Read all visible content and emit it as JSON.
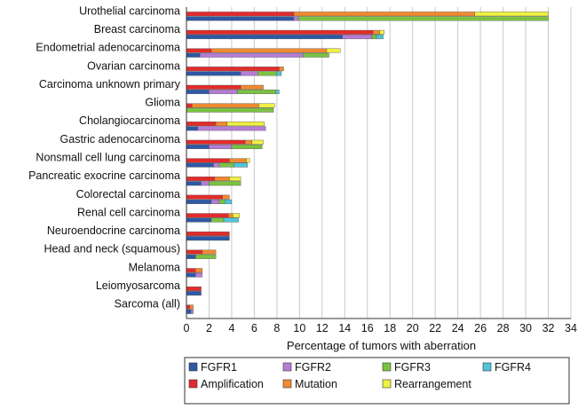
{
  "chart_data": {
    "type": "bar",
    "orientation": "horizontal",
    "stacked": true,
    "xlabel": "Percentage of tumors with aberration",
    "xlim": [
      0,
      34
    ],
    "xticks": [
      0,
      2,
      4,
      6,
      8,
      10,
      12,
      14,
      16,
      18,
      20,
      22,
      24,
      26,
      28,
      30,
      32,
      34
    ],
    "grid": "vertical",
    "legend_position": "bottom",
    "categories": [
      "Urothelial carcinoma",
      "Breast carcinoma",
      "Endometrial adenocarcinoma",
      "Ovarian carcinoma",
      "Carcinoma unknown primary",
      "Glioma",
      "Cholangiocarcinoma",
      "Gastric adenocarcinoma",
      "Nonsmall cell lung carcinoma",
      "Pancreatic exocrine carcinoma",
      "Colorectal carcinoma",
      "Renal cell carcinoma",
      "Neuroendocrine carcinoma",
      "Head and neck (squamous)",
      "Melanoma",
      "Leiomyosarcoma",
      "Sarcoma (all)"
    ],
    "aberration_bars": {
      "series": [
        {
          "name": "Amplification",
          "color": "#e32b2b",
          "values": [
            9.5,
            16.5,
            2.2,
            8.2,
            4.8,
            0.5,
            2.6,
            5.2,
            3.8,
            2.5,
            3.2,
            3.7,
            3.8,
            1.4,
            0.8,
            1.3,
            0.3
          ]
        },
        {
          "name": "Mutation",
          "color": "#f08a30",
          "values": [
            16.0,
            0.6,
            10.2,
            0.4,
            2.0,
            5.9,
            1.0,
            0.6,
            1.5,
            1.3,
            0.6,
            0.4,
            0.0,
            1.2,
            0.6,
            0.0,
            0.3
          ]
        },
        {
          "name": "Rearrangement",
          "color": "#f0f042",
          "values": [
            6.5,
            0.4,
            1.2,
            0.0,
            0.0,
            1.4,
            3.3,
            1.0,
            0.3,
            1.0,
            0.0,
            0.6,
            0.0,
            0.0,
            0.0,
            0.0,
            0.0
          ]
        }
      ]
    },
    "gene_bars": {
      "series": [
        {
          "name": "FGFR1",
          "color": "#2e58a6",
          "values": [
            9.5,
            13.8,
            1.2,
            4.8,
            2.0,
            0.0,
            1.0,
            2.0,
            2.4,
            1.3,
            2.2,
            2.2,
            3.8,
            0.8,
            0.8,
            1.3,
            0.4
          ]
        },
        {
          "name": "FGFR2",
          "color": "#b57dd6",
          "values": [
            0.4,
            2.6,
            9.1,
            1.5,
            2.5,
            0.0,
            6.0,
            2.0,
            0.5,
            0.7,
            0.7,
            0.0,
            0.0,
            0.0,
            0.6,
            0.0,
            0.2
          ]
        },
        {
          "name": "FGFR3",
          "color": "#7bc242",
          "values": [
            22.1,
            0.4,
            2.3,
            1.7,
            3.4,
            7.7,
            0.0,
            2.7,
            1.3,
            2.8,
            0.5,
            1.1,
            0.0,
            1.8,
            0.0,
            0.0,
            0.0
          ]
        },
        {
          "name": "FGFR4",
          "color": "#4fc6d8",
          "values": [
            0.0,
            0.6,
            0.0,
            0.4,
            0.3,
            0.0,
            0.0,
            0.0,
            1.2,
            0.0,
            0.6,
            1.3,
            0.0,
            0.0,
            0.0,
            0.0,
            0.0
          ]
        }
      ]
    },
    "legend": {
      "row1": [
        "FGFR1",
        "FGFR2",
        "FGFR3",
        "FGFR4"
      ],
      "row2": [
        "Amplification",
        "Mutation",
        "Rearrangement"
      ]
    }
  }
}
